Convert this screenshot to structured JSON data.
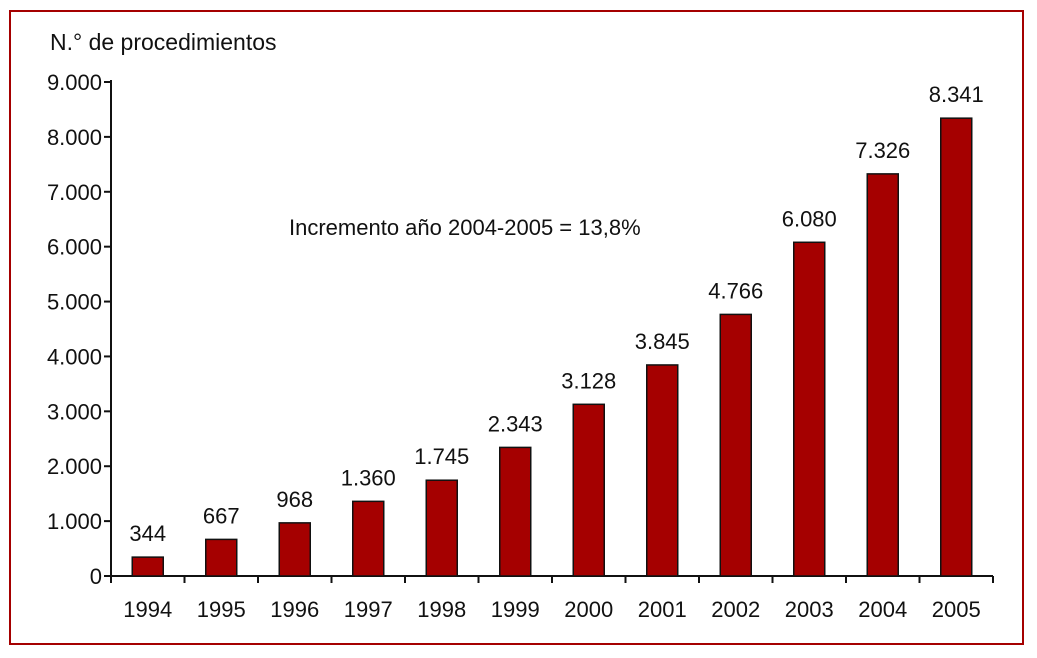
{
  "chart_data": {
    "type": "bar",
    "ylabel": "N.° de procedimientos",
    "annotation": "Incremento año 2004-2005 = 13,8%",
    "categories": [
      "1994",
      "1995",
      "1996",
      "1997",
      "1998",
      "1999",
      "2000",
      "2001",
      "2002",
      "2003",
      "2004",
      "2005"
    ],
    "values": [
      344,
      667,
      968,
      1360,
      1745,
      2343,
      3128,
      3845,
      4766,
      6080,
      7326,
      8341
    ],
    "value_labels": [
      "344",
      "667",
      "968",
      "1.360",
      "1.745",
      "2.343",
      "3.128",
      "3.845",
      "4.766",
      "6.080",
      "7.326",
      "8.341"
    ],
    "ylim": [
      0,
      9000
    ],
    "yticks": [
      0,
      1000,
      2000,
      3000,
      4000,
      5000,
      6000,
      7000,
      8000,
      9000
    ],
    "ytick_labels": [
      "0",
      "1.000",
      "2.000",
      "3.000",
      "4.000",
      "5.000",
      "6.000",
      "7.000",
      "8.000",
      "9.000"
    ],
    "grid": false,
    "colors": {
      "bar": "#a50000",
      "frame": "#a50000",
      "axis": "#111111"
    }
  }
}
